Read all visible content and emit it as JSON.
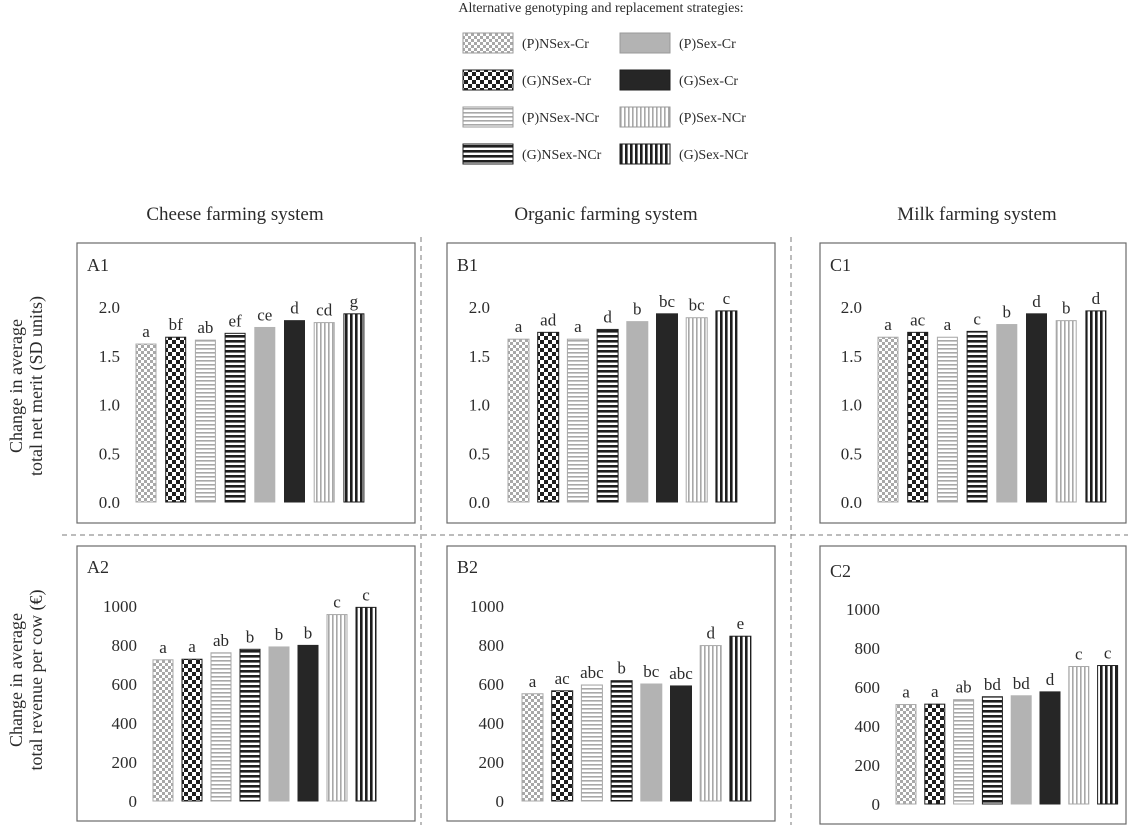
{
  "legend": {
    "title": "Alternative genotyping and replacement strategies:",
    "entries": [
      {
        "label": "(P)NSex-Cr",
        "pattern": "light-check"
      },
      {
        "label": "(P)Sex-Cr",
        "pattern": "solid-gray"
      },
      {
        "label": "(G)NSex-Cr",
        "pattern": "dark-check"
      },
      {
        "label": "(G)Sex-Cr",
        "pattern": "solid-black"
      },
      {
        "label": "(P)NSex-NCr",
        "pattern": "light-hstripe"
      },
      {
        "label": "(P)Sex-NCr",
        "pattern": "light-vstripe"
      },
      {
        "label": "(G)NSex-NCr",
        "pattern": "dark-hstripe"
      },
      {
        "label": "(G)Sex-NCr",
        "pattern": "dark-vstripe"
      }
    ]
  },
  "columns": [
    "Cheese farming system",
    "Organic farming system",
    "Milk farming system"
  ],
  "row_labels": [
    [
      "Change in average",
      "total net merit (SD units)"
    ],
    [
      "Change in average",
      "total revenue per cow (€)"
    ]
  ],
  "colors": {
    "solid_gray": "#b3b3b3",
    "solid_black": "#262626",
    "pattern_dark": "#1e1e1e",
    "pattern_light": "#a8a8a8",
    "panel_border": "#6a6a6a",
    "divider": "#7a7a7a"
  },
  "chart_data": [
    {
      "panel": "A1",
      "type": "bar",
      "categories": [
        "(P)NSex-Cr",
        "(G)NSex-Cr",
        "(P)NSex-NCr",
        "(G)NSex-NCr",
        "(P)Sex-Cr",
        "(G)Sex-Cr",
        "(P)Sex-NCr",
        "(G)Sex-NCr"
      ],
      "values": [
        1.62,
        1.69,
        1.66,
        1.73,
        1.79,
        1.86,
        1.84,
        1.93
      ],
      "letters": [
        "a",
        "bf",
        "ab",
        "ef",
        "ce",
        "d",
        "cd",
        "g"
      ],
      "ylim": [
        0,
        2.0
      ],
      "yticks": [
        "0.0",
        "0.5",
        "1.0",
        "1.5",
        "2.0"
      ]
    },
    {
      "panel": "B1",
      "type": "bar",
      "categories": [
        "(P)NSex-Cr",
        "(G)NSex-Cr",
        "(P)NSex-NCr",
        "(G)NSex-NCr",
        "(P)Sex-Cr",
        "(G)Sex-Cr",
        "(P)Sex-NCr",
        "(G)Sex-NCr"
      ],
      "values": [
        1.67,
        1.74,
        1.67,
        1.77,
        1.85,
        1.93,
        1.89,
        1.96
      ],
      "letters": [
        "a",
        "ad",
        "a",
        "d",
        "b",
        "bc",
        "bc",
        "c"
      ],
      "ylim": [
        0,
        2.0
      ],
      "yticks": [
        "0.0",
        "0.5",
        "1.0",
        "1.5",
        "2.0"
      ]
    },
    {
      "panel": "C1",
      "type": "bar",
      "categories": [
        "(P)NSex-Cr",
        "(G)NSex-Cr",
        "(P)NSex-NCr",
        "(G)NSex-NCr",
        "(P)Sex-Cr",
        "(G)Sex-Cr",
        "(P)Sex-NCr",
        "(G)Sex-NCr"
      ],
      "values": [
        1.69,
        1.74,
        1.69,
        1.75,
        1.82,
        1.93,
        1.86,
        1.96
      ],
      "letters": [
        "a",
        "ac",
        "a",
        "c",
        "b",
        "d",
        "b",
        "d"
      ],
      "ylim": [
        0,
        2.0
      ],
      "yticks": [
        "0.0",
        "0.5",
        "1.0",
        "1.5",
        "2.0"
      ]
    },
    {
      "panel": "A2",
      "type": "bar",
      "categories": [
        "(P)NSex-Cr",
        "(G)NSex-Cr",
        "(P)NSex-NCr",
        "(G)NSex-NCr",
        "(P)Sex-Cr",
        "(G)Sex-Cr",
        "(P)Sex-NCr",
        "(G)Sex-NCr"
      ],
      "values": [
        724,
        727,
        760,
        778,
        790,
        798,
        956,
        993
      ],
      "letters": [
        "a",
        "a",
        "ab",
        "b",
        "b",
        "b",
        "c",
        "c"
      ],
      "ylim": [
        0,
        1000
      ],
      "yticks": [
        "0",
        "200",
        "400",
        "600",
        "800",
        "1000"
      ]
    },
    {
      "panel": "B2",
      "type": "bar",
      "categories": [
        "(P)NSex-Cr",
        "(G)NSex-Cr",
        "(P)NSex-NCr",
        "(G)NSex-NCr",
        "(P)Sex-Cr",
        "(G)Sex-Cr",
        "(P)Sex-NCr",
        "(G)Sex-NCr"
      ],
      "values": [
        550,
        565,
        595,
        617,
        600,
        590,
        797,
        845
      ],
      "letters": [
        "a",
        "ac",
        "abc",
        "b",
        "bc",
        "abc",
        "d",
        "e"
      ],
      "ylim": [
        0,
        1000
      ],
      "yticks": [
        "0",
        "200",
        "400",
        "600",
        "800",
        "1000"
      ]
    },
    {
      "panel": "C2",
      "type": "bar",
      "categories": [
        "(P)NSex-Cr",
        "(G)NSex-Cr",
        "(P)NSex-NCr",
        "(G)NSex-NCr",
        "(P)Sex-Cr",
        "(G)Sex-Cr",
        "(P)Sex-NCr",
        "(G)Sex-NCr"
      ],
      "values": [
        510,
        512,
        535,
        550,
        555,
        575,
        705,
        710
      ],
      "letters": [
        "a",
        "a",
        "ab",
        "bd",
        "bd",
        "d",
        "c",
        "c"
      ],
      "ylim": [
        0,
        1000
      ],
      "yticks": [
        "0",
        "200",
        "400",
        "600",
        "800",
        "1000"
      ]
    }
  ]
}
